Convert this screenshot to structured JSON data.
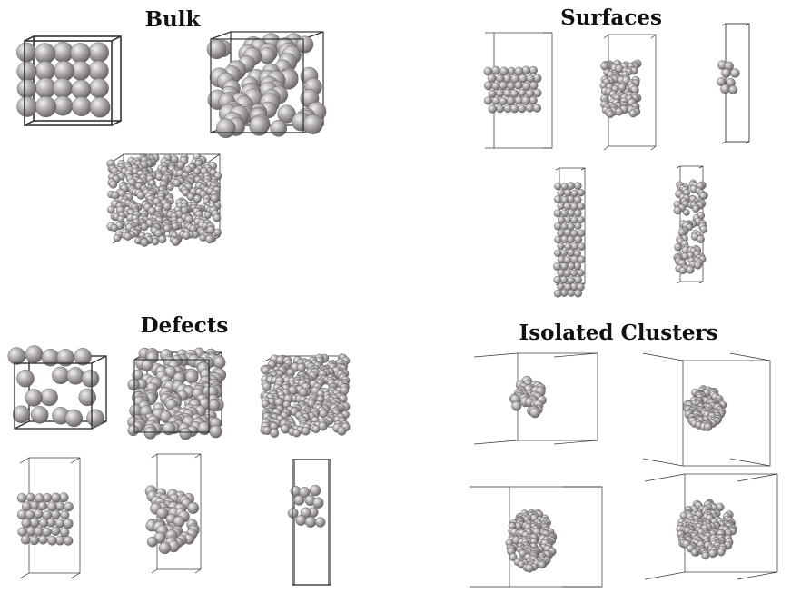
{
  "sections": {
    "bulk": {
      "title": "Bulk"
    },
    "surfaces": {
      "title": "Surfaces"
    },
    "defects": {
      "title": "Defects"
    },
    "clusters": {
      "title": "Isolated Clusters"
    }
  },
  "colors": {
    "atom_fill": "#a8a4a4",
    "atom_light": "#ece9e9",
    "atom_dark": "#6e6a6a",
    "box_line": "#333333",
    "background": "#ffffff"
  }
}
